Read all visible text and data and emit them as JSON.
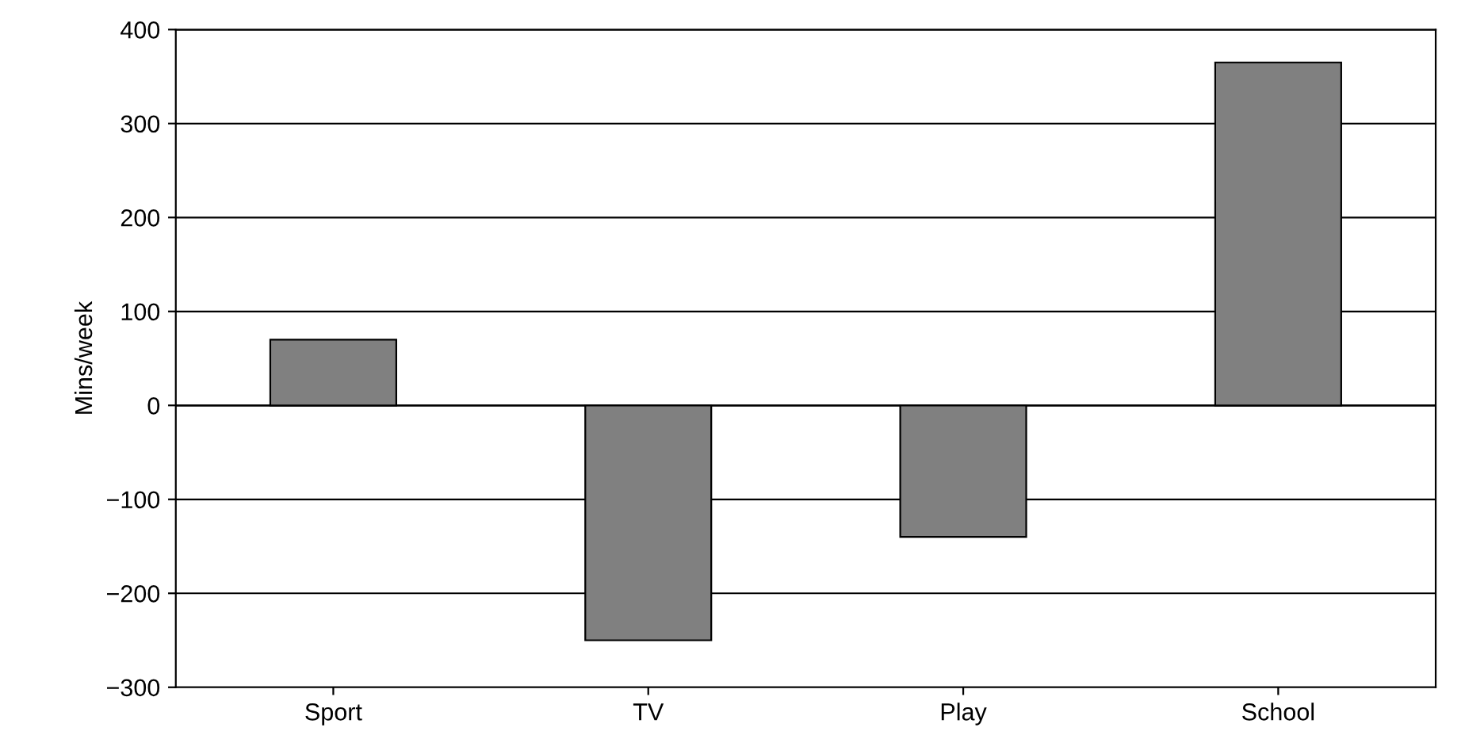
{
  "chart_data": {
    "type": "bar",
    "ylabel": "Mins/week",
    "categories": [
      "Sport",
      "TV",
      "Play",
      "School"
    ],
    "values": [
      70,
      -250,
      -140,
      365
    ],
    "color": "#808080",
    "ylim": [
      -300,
      400
    ],
    "yticks": [
      {
        "value": -300,
        "label": "−300"
      },
      {
        "value": -200,
        "label": "−200"
      },
      {
        "value": -100,
        "label": "−100"
      },
      0,
      100,
      200,
      300,
      400
    ],
    "grid": "y"
  }
}
